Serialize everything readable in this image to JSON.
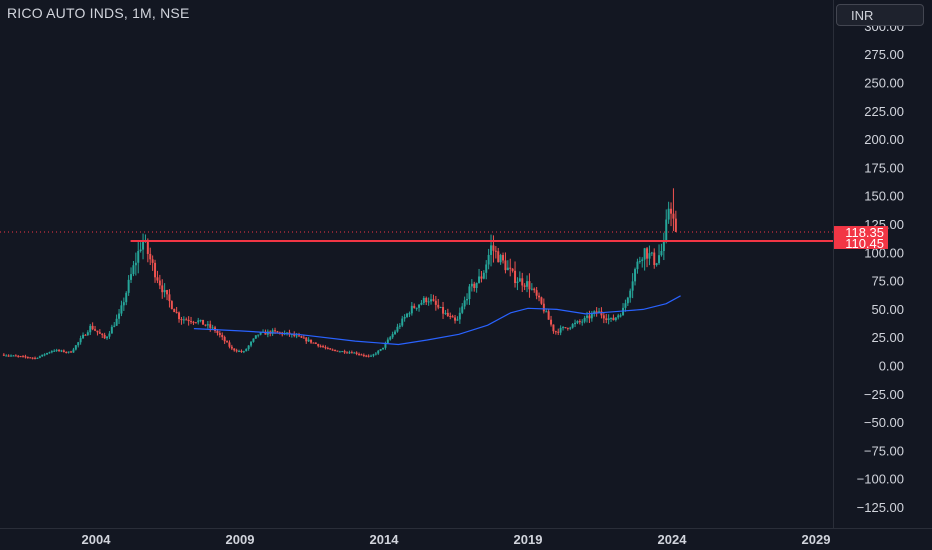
{
  "header": {
    "symbol_title": "RICO AUTO INDS, 1M, NSE",
    "currency_button": "INR"
  },
  "colors": {
    "background": "#131722",
    "up": "#26a69a",
    "down": "#ef5350",
    "moving_average": "#2962ff",
    "resistance_line": "#f23645",
    "text": "#d1d4dc"
  },
  "chart_data": {
    "type": "candlestick",
    "title": "RICO AUTO INDS, 1M, NSE",
    "timeframe": "1M",
    "exchange": "NSE",
    "currency": "INR",
    "y_ticks": [
      "300.00",
      "275.00",
      "250.00",
      "225.00",
      "200.00",
      "175.00",
      "150.00",
      "125.00",
      "100.00",
      "75.00",
      "50.00",
      "25.00",
      "0.00",
      "−25.00",
      "−50.00",
      "−75.00",
      "−100.00",
      "−125.00"
    ],
    "x_ticks": [
      "2004",
      "2009",
      "2014",
      "2019",
      "2024",
      "2029"
    ],
    "ylim": [
      -140,
      305
    ],
    "xlim": [
      2000.7,
      2031.1
    ],
    "price_levels": [
      {
        "label": "118.35",
        "value": 118.35,
        "style": "dotted",
        "role": "last-price"
      },
      {
        "label": "110.45",
        "value": 110.45,
        "style": "solid",
        "role": "horizontal-resistance"
      }
    ],
    "price_path": [
      [
        2000.8,
        10
      ],
      [
        2002.0,
        7
      ],
      [
        2002.6,
        14
      ],
      [
        2003.2,
        12
      ],
      [
        2003.9,
        35
      ],
      [
        2004.4,
        24
      ],
      [
        2004.9,
        45
      ],
      [
        2005.3,
        80
      ],
      [
        2005.7,
        112
      ],
      [
        2006.1,
        85
      ],
      [
        2006.5,
        62
      ],
      [
        2007.0,
        42
      ],
      [
        2007.6,
        40
      ],
      [
        2008.2,
        32
      ],
      [
        2008.8,
        15
      ],
      [
        2009.2,
        12
      ],
      [
        2009.7,
        28
      ],
      [
        2010.2,
        30
      ],
      [
        2010.8,
        28
      ],
      [
        2011.5,
        22
      ],
      [
        2012.2,
        14
      ],
      [
        2013.0,
        12
      ],
      [
        2013.6,
        8
      ],
      [
        2014.0,
        15
      ],
      [
        2014.5,
        32
      ],
      [
        2015.0,
        50
      ],
      [
        2015.6,
        60
      ],
      [
        2016.1,
        48
      ],
      [
        2016.6,
        38
      ],
      [
        2017.0,
        65
      ],
      [
        2017.5,
        80
      ],
      [
        2017.8,
        105
      ],
      [
        2018.2,
        92
      ],
      [
        2018.6,
        78
      ],
      [
        2019.1,
        72
      ],
      [
        2019.6,
        52
      ],
      [
        2020.0,
        30
      ],
      [
        2020.5,
        35
      ],
      [
        2021.0,
        40
      ],
      [
        2021.5,
        48
      ],
      [
        2022.0,
        40
      ],
      [
        2022.4,
        50
      ],
      [
        2022.8,
        85
      ],
      [
        2023.1,
        103
      ],
      [
        2023.5,
        92
      ],
      [
        2023.8,
        105
      ],
      [
        2024.0,
        148
      ],
      [
        2024.2,
        118
      ]
    ],
    "moving_average": [
      [
        2007.4,
        33
      ],
      [
        2009.0,
        31
      ],
      [
        2011.0,
        28
      ],
      [
        2013.0,
        22
      ],
      [
        2014.5,
        19
      ],
      [
        2015.5,
        23
      ],
      [
        2016.6,
        28
      ],
      [
        2017.6,
        36
      ],
      [
        2018.4,
        47
      ],
      [
        2019.0,
        51
      ],
      [
        2020.0,
        50
      ],
      [
        2021.0,
        46
      ],
      [
        2022.0,
        48
      ],
      [
        2023.0,
        50
      ],
      [
        2023.8,
        55
      ],
      [
        2024.3,
        62
      ]
    ]
  }
}
